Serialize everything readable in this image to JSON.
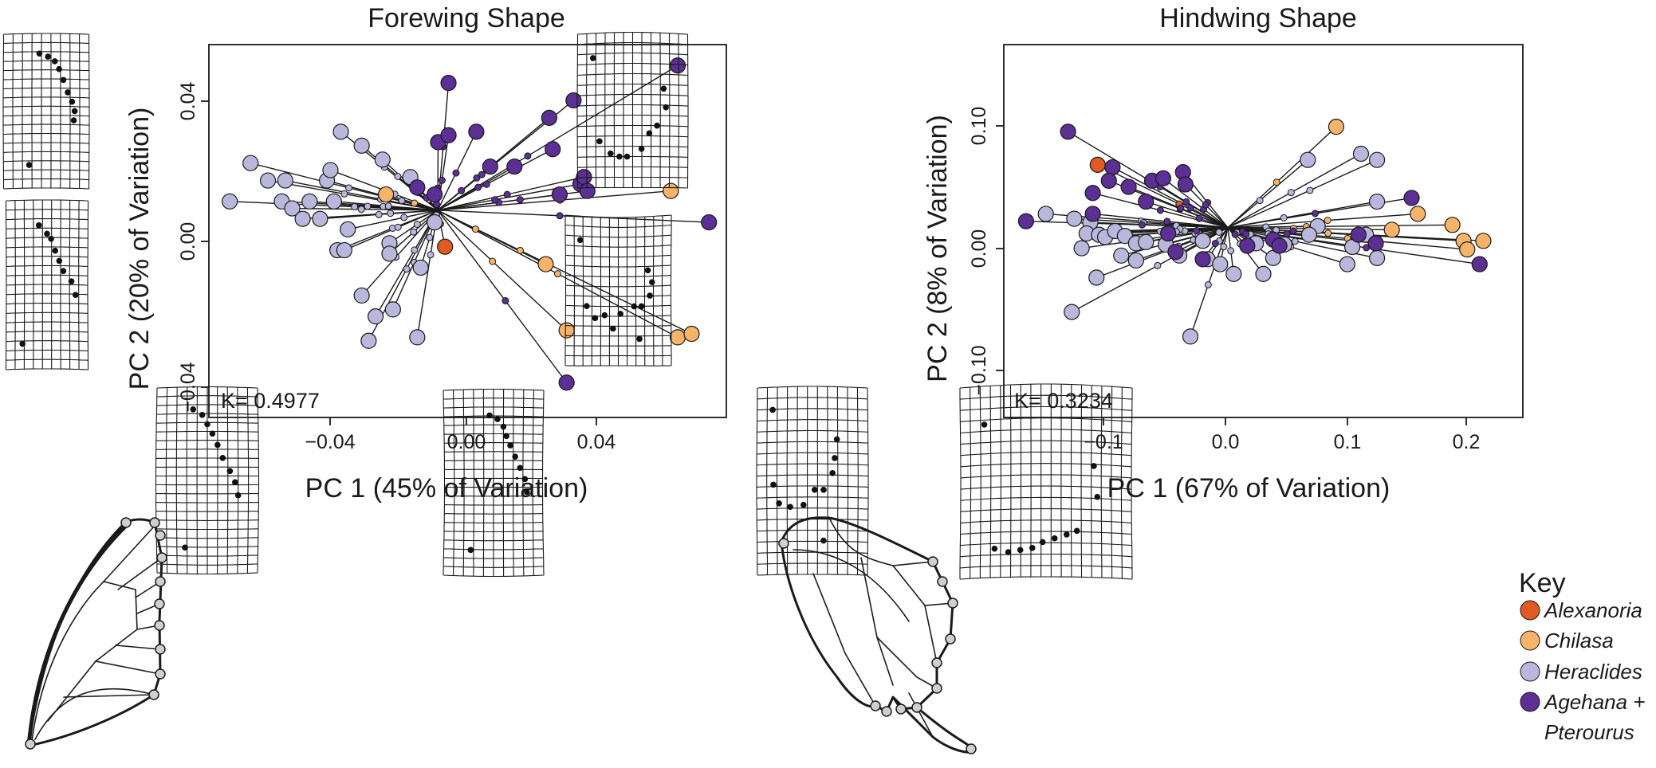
{
  "colors": {
    "Alexanoria": "#e05a22",
    "Chilasa": "#f6b46a",
    "Heraclides": "#b9b8dc",
    "Agehana": "#5b2f93"
  },
  "charts": [
    {
      "title": "Forewing Shape",
      "xlabel": "PC 1 (45% of Variation)",
      "ylabel": "PC 2 (20% of Variation)",
      "kvalue": "K= 0.4977",
      "xticks": [
        "−0.04",
        "0.00",
        "0.04"
      ],
      "yticks": [
        "−0.04",
        "0.00",
        "0.04"
      ]
    },
    {
      "title": "Hindwing Shape",
      "xlabel": "PC 1 (67% of Variation)",
      "ylabel": "PC 2 (8% of Variation)",
      "kvalue": "K= 0.3234",
      "xticks": [
        "−0.1",
        "0.0",
        "0.1",
        "0.2"
      ],
      "yticks": [
        "−0.10",
        "0.00",
        "0.10"
      ]
    }
  ],
  "chart_data": [
    {
      "type": "scatter",
      "title": "Forewing Shape",
      "xlabel": "PC 1 (45% of Variation)",
      "ylabel": "PC 2 (20% of Variation)",
      "xlim": [
        -0.073,
        0.076
      ],
      "ylim": [
        -0.051,
        0.056
      ],
      "xticks": [
        -0.04,
        0.0,
        0.04
      ],
      "yticks": [
        -0.04,
        0.0,
        0.04
      ],
      "annotation": "K= 0.4977",
      "series": [
        {
          "name": "Alexanoria",
          "points": [
            [
              -0.005,
              -0.002
            ]
          ]
        },
        {
          "name": "Chilasa",
          "points": [
            [
              -0.022,
              0.013
            ],
            [
              0.06,
              0.014
            ],
            [
              0.024,
              -0.007
            ],
            [
              0.03,
              -0.026
            ],
            [
              0.062,
              -0.028
            ],
            [
              0.066,
              -0.027
            ]
          ]
        },
        {
          "name": "Heraclides",
          "points": [
            [
              -0.067,
              0.011
            ],
            [
              -0.061,
              0.022
            ],
            [
              -0.056,
              0.017
            ],
            [
              -0.051,
              0.017
            ],
            [
              -0.052,
              0.011
            ],
            [
              -0.049,
              0.009
            ],
            [
              -0.046,
              0.006
            ],
            [
              -0.044,
              0.011
            ],
            [
              -0.041,
              0.006
            ],
            [
              -0.039,
              0.017
            ],
            [
              -0.038,
              0.02
            ],
            [
              -0.037,
              0.011
            ],
            [
              -0.035,
              0.031
            ],
            [
              -0.033,
              0.003
            ],
            [
              -0.036,
              -0.003
            ],
            [
              -0.029,
              0.027
            ],
            [
              -0.023,
              0.023
            ],
            [
              -0.021,
              -0.001
            ],
            [
              -0.021,
              -0.004
            ],
            [
              -0.015,
              0.018
            ],
            [
              -0.008,
              0.005
            ],
            [
              -0.012,
              -0.008
            ],
            [
              -0.029,
              -0.016
            ],
            [
              -0.025,
              -0.022
            ],
            [
              -0.027,
              -0.029
            ],
            [
              -0.02,
              -0.02
            ],
            [
              -0.013,
              -0.028
            ],
            [
              -0.034,
              -0.003
            ]
          ]
        },
        {
          "name": "Agehana + Pterourus",
          "points": [
            [
              -0.004,
              0.045
            ],
            [
              -0.007,
              0.028
            ],
            [
              -0.004,
              0.03
            ],
            [
              0.004,
              0.031
            ],
            [
              -0.013,
              0.015
            ],
            [
              -0.008,
              0.013
            ],
            [
              0.008,
              0.021
            ],
            [
              0.015,
              0.021
            ],
            [
              0.025,
              0.035
            ],
            [
              0.026,
              0.026
            ],
            [
              0.028,
              0.013
            ],
            [
              0.032,
              0.04
            ],
            [
              0.034,
              0.016
            ],
            [
              0.035,
              0.018
            ],
            [
              0.036,
              0.014
            ],
            [
              0.062,
              0.05
            ],
            [
              0.071,
              0.005
            ],
            [
              0.03,
              -0.041
            ]
          ]
        }
      ]
    },
    {
      "type": "scatter",
      "title": "Hindwing Shape",
      "xlabel": "PC 1 (67% of Variation)",
      "ylabel": "PC 2 (8% of Variation)",
      "xlim": [
        -0.175,
        0.245
      ],
      "ylim": [
        -0.138,
        0.166
      ],
      "xticks": [
        -0.1,
        0.0,
        0.1,
        0.2
      ],
      "yticks": [
        -0.1,
        0.0,
        0.1
      ],
      "annotation": "K= 0.3234",
      "series": [
        {
          "name": "Alexanoria",
          "points": [
            [
              -0.099,
              0.068
            ]
          ]
        },
        {
          "name": "Chilasa",
          "points": [
            [
              0.094,
              0.099
            ],
            [
              0.16,
              0.028
            ],
            [
              0.188,
              0.019
            ],
            [
              0.197,
              0.006
            ],
            [
              0.2,
              -0.001
            ],
            [
              0.213,
              0.006
            ],
            [
              0.139,
              0.015
            ]
          ]
        },
        {
          "name": "Heraclides",
          "points": [
            [
              -0.141,
              0.028
            ],
            [
              -0.118,
              0.024
            ],
            [
              -0.105,
              0.021
            ],
            [
              -0.108,
              0.012
            ],
            [
              -0.098,
              0.011
            ],
            [
              -0.093,
              0.009
            ],
            [
              -0.085,
              0.014
            ],
            [
              -0.077,
              0.01
            ],
            [
              -0.068,
              0.004
            ],
            [
              -0.06,
              0.005
            ],
            [
              -0.044,
              0.003
            ],
            [
              -0.112,
              0.0
            ],
            [
              -0.1,
              -0.024
            ],
            [
              -0.12,
              -0.052
            ],
            [
              -0.024,
              -0.072
            ],
            [
              -0.014,
              0.006
            ],
            [
              -0.01,
              -0.009
            ],
            [
              0.011,
              -0.021
            ],
            [
              0.029,
              0.004
            ],
            [
              0.071,
              0.072
            ],
            [
              0.114,
              0.077
            ],
            [
              0.127,
              0.072
            ],
            [
              0.127,
              0.038
            ],
            [
              0.127,
              -0.008
            ],
            [
              0.103,
              -0.013
            ],
            [
              0.118,
              0.011
            ],
            [
              0.079,
              0.018
            ],
            [
              0.072,
              0.011
            ],
            [
              0.107,
              0.001
            ],
            [
              0.052,
              0.003
            ],
            [
              0.043,
              -0.008
            ],
            [
              -0.08,
              -0.006
            ],
            [
              -0.068,
              -0.01
            ],
            [
              -0.033,
              -0.006
            ],
            [
              0.0,
              -0.013
            ],
            [
              0.035,
              -0.021
            ]
          ]
        },
        {
          "name": "Agehana + Pterourus",
          "points": [
            [
              -0.123,
              0.095
            ],
            [
              -0.103,
              0.045
            ],
            [
              -0.087,
              0.066
            ],
            [
              -0.09,
              0.055
            ],
            [
              -0.074,
              0.05
            ],
            [
              -0.055,
              0.055
            ],
            [
              -0.046,
              0.057
            ],
            [
              -0.03,
              0.062
            ],
            [
              -0.028,
              0.052
            ],
            [
              -0.06,
              0.038
            ],
            [
              -0.036,
              -0.003
            ],
            [
              -0.014,
              -0.009
            ],
            [
              0.043,
              0.007
            ],
            [
              0.126,
              0.004
            ],
            [
              0.155,
              0.041
            ],
            [
              0.21,
              -0.013
            ],
            [
              0.022,
              0.002
            ],
            [
              -0.103,
              0.028
            ],
            [
              -0.042,
              0.012
            ],
            [
              0.048,
              0.002
            ],
            [
              -0.157,
              0.022
            ],
            [
              0.112,
              0.011
            ]
          ]
        }
      ]
    }
  ],
  "key": {
    "title": "Key",
    "items": [
      {
        "label": "Alexanoria"
      },
      {
        "label": "Chilasa"
      },
      {
        "label": "Heraclides"
      },
      {
        "label": "Agehana +"
      }
    ],
    "continuation": "Pterourus"
  }
}
